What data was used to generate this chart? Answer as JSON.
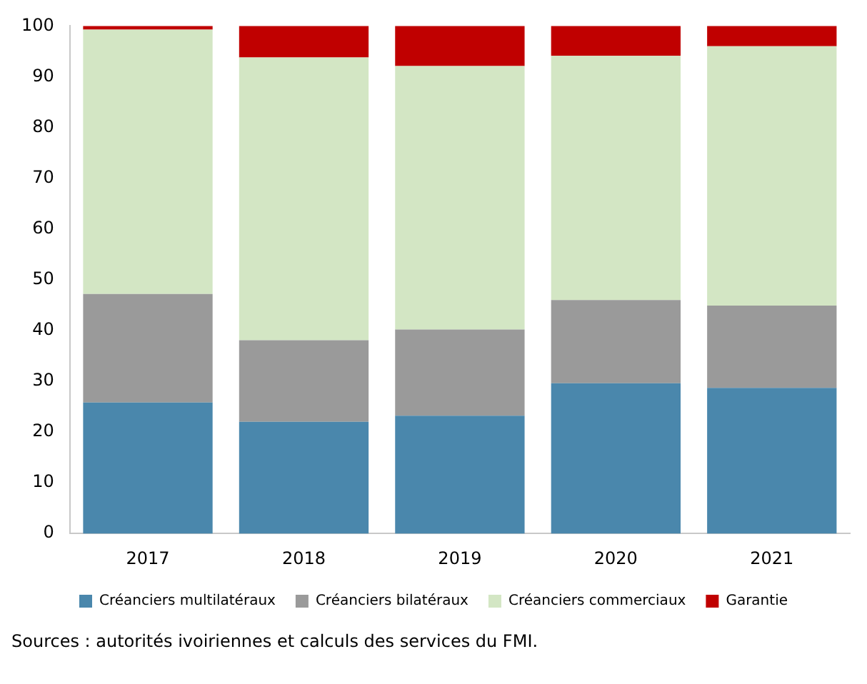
{
  "chart_data": {
    "type": "bar",
    "stacked": true,
    "categories": [
      "2017",
      "2018",
      "2019",
      "2020",
      "2021"
    ],
    "series": [
      {
        "name": "Créanciers multilatéraux",
        "color": "#4a87ac",
        "values": [
          25.8,
          22.0,
          23.2,
          29.6,
          28.7
        ]
      },
      {
        "name": "Créanciers bilatéraux",
        "color": "#9a9a9a",
        "values": [
          21.4,
          16.1,
          17.0,
          16.4,
          16.2
        ]
      },
      {
        "name": "Créanciers commerciaux",
        "color": "#d3e6c4",
        "values": [
          52.1,
          55.7,
          51.9,
          48.1,
          51.1
        ]
      },
      {
        "name": "Garantie",
        "color": "#c00000",
        "values": [
          0.7,
          6.2,
          7.9,
          5.9,
          4.0
        ]
      }
    ],
    "ylim": [
      0,
      100
    ],
    "yticks": [
      0,
      10,
      20,
      30,
      40,
      50,
      60,
      70,
      80,
      90,
      100
    ],
    "grid": false,
    "legend": "bottom",
    "annotations": [
      "Sources : autorités ivoiriennes et calculs des services du FMI."
    ]
  }
}
